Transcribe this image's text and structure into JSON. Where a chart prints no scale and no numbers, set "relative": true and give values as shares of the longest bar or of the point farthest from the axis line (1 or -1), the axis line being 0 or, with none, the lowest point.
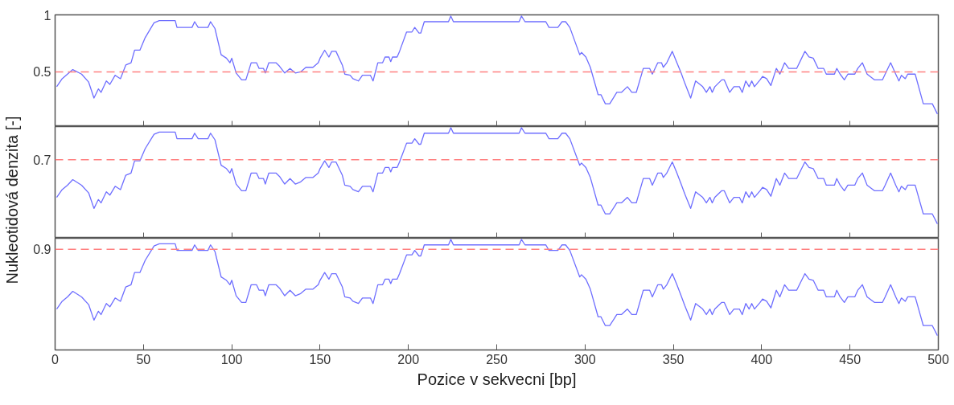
{
  "chart_data": [
    {
      "type": "line",
      "tick_labels": "y",
      "xlim": [
        0,
        500
      ],
      "xticks": [
        0,
        50,
        100,
        150,
        200,
        250,
        300,
        350,
        400,
        450,
        500
      ],
      "ylim": [
        0.02,
        1
      ],
      "yticks": [
        0.5,
        1
      ],
      "x": [
        0.9,
        4,
        7,
        10,
        15,
        19,
        22,
        24.5,
        26,
        29,
        31,
        34,
        37,
        40,
        43,
        45,
        48,
        51,
        56,
        59,
        68,
        69,
        77.5,
        79,
        81,
        86.5,
        88,
        90.5,
        94,
        97,
        99,
        100,
        102.5,
        105.6,
        108,
        111,
        114,
        115.5,
        118,
        119,
        121,
        125,
        127,
        130,
        133,
        136,
        139,
        142,
        146,
        149,
        150,
        152.6,
        155,
        156.6,
        159,
        162.6,
        164,
        167,
        168.6,
        171.7,
        174,
        178.5,
        180,
        182.7,
        185.4,
        186.8,
        189,
        190,
        191,
        193.6,
        195,
        199,
        202,
        203.6,
        206,
        207,
        209,
        222.7,
        224,
        225.5,
        262.7,
        264,
        266,
        277.8,
        279.6,
        284.6,
        287,
        289,
        291.4,
        297,
        298,
        300.5,
        303,
        307.4,
        309,
        311.5,
        314,
        318,
        320.6,
        324,
        326.5,
        329,
        333,
        336.6,
        338.1,
        341.2,
        343.3,
        344.3,
        346.3,
        349.4,
        352,
        354.4,
        356.5,
        359.8,
        362.6,
        366.6,
        368.7,
        370.7,
        372,
        373.5,
        377.4,
        378.8,
        381.9,
        384.3,
        387.4,
        389,
        391,
        392.9,
        394.4,
        395.9,
        399.1,
        400.5,
        402.8,
        405.2,
        408.3,
        410.3,
        413,
        415.3,
        419.8,
        424.5,
        426.8,
        429.2,
        432,
        435.1,
        436.6,
        441.2,
        442.5,
        444.4,
        446.8,
        448.8,
        452.7,
        454.4,
        457,
        459.7,
        463.8,
        468.4,
        469.9,
        473,
        475.9,
        477.7,
        479.1,
        481.3,
        482.7,
        486.9,
        491.5,
        496.6,
        499.5
      ],
      "values": [
        0.37,
        0.44,
        0.48,
        0.52,
        0.48,
        0.41,
        0.27,
        0.35,
        0.32,
        0.42,
        0.39,
        0.47,
        0.44,
        0.56,
        0.58,
        0.69,
        0.69,
        0.8,
        0.93,
        0.95,
        0.95,
        0.89,
        0.89,
        0.94,
        0.89,
        0.89,
        0.94,
        0.88,
        0.65,
        0.62,
        0.58,
        0.62,
        0.49,
        0.43,
        0.43,
        0.58,
        0.58,
        0.53,
        0.53,
        0.49,
        0.58,
        0.58,
        0.55,
        0.49,
        0.53,
        0.49,
        0.5,
        0.54,
        0.54,
        0.58,
        0.62,
        0.69,
        0.63,
        0.68,
        0.68,
        0.56,
        0.48,
        0.47,
        0.44,
        0.42,
        0.47,
        0.47,
        0.42,
        0.58,
        0.58,
        0.63,
        0.63,
        0.59,
        0.63,
        0.63,
        0.68,
        0.85,
        0.85,
        0.89,
        0.84,
        0.84,
        0.94,
        0.94,
        0.99,
        0.94,
        0.94,
        0.99,
        0.94,
        0.94,
        0.89,
        0.89,
        0.94,
        0.94,
        0.89,
        0.65,
        0.67,
        0.63,
        0.54,
        0.3,
        0.3,
        0.22,
        0.22,
        0.32,
        0.32,
        0.37,
        0.32,
        0.32,
        0.53,
        0.53,
        0.48,
        0.58,
        0.58,
        0.54,
        0.58,
        0.68,
        0.58,
        0.49,
        0.4,
        0.27,
        0.42,
        0.37,
        0.32,
        0.37,
        0.32,
        0.37,
        0.43,
        0.43,
        0.32,
        0.37,
        0.37,
        0.32,
        0.42,
        0.37,
        0.42,
        0.37,
        0.43,
        0.46,
        0.44,
        0.38,
        0.53,
        0.48,
        0.58,
        0.53,
        0.53,
        0.68,
        0.63,
        0.62,
        0.53,
        0.53,
        0.48,
        0.48,
        0.53,
        0.48,
        0.43,
        0.48,
        0.48,
        0.53,
        0.58,
        0.48,
        0.43,
        0.43,
        0.48,
        0.58,
        0.48,
        0.42,
        0.47,
        0.44,
        0.48,
        0.48,
        0.22,
        0.22,
        0.13
      ],
      "color": "#6e6eff",
      "line_style": "solid",
      "marker": "none",
      "ref_lines": [
        {
          "axis": "y",
          "value": 0.5,
          "color": "#ff8080",
          "line_style": "dashed"
        }
      ]
    },
    {
      "type": "line",
      "relative": true,
      "tick_labels": "y",
      "ylabel": "Nukleotidová denzita [-]",
      "xlim": [
        0,
        500
      ],
      "xticks": [
        0,
        50,
        100,
        150,
        200,
        250,
        300,
        350,
        400,
        450,
        500
      ],
      "x": [
        0.9,
        4,
        7,
        10,
        15,
        19,
        22,
        24.5,
        26,
        29,
        31,
        34,
        37,
        40,
        43,
        45,
        48,
        51,
        56,
        59,
        68,
        69,
        77.5,
        79,
        81,
        86.5,
        88,
        90.5,
        94,
        97,
        99,
        100,
        102.5,
        105.6,
        108,
        111,
        114,
        115.5,
        118,
        119,
        121,
        125,
        127,
        130,
        133,
        136,
        139,
        142,
        146,
        149,
        150,
        152.6,
        155,
        156.6,
        159,
        162.6,
        164,
        167,
        168.6,
        171.7,
        174,
        178.5,
        180,
        182.7,
        185.4,
        186.8,
        189,
        190,
        191,
        193.6,
        195,
        199,
        202,
        203.6,
        206,
        207,
        209,
        222.7,
        224,
        225.5,
        262.7,
        264,
        266,
        277.8,
        279.6,
        284.6,
        287,
        289,
        291.4,
        297,
        298,
        300.5,
        303,
        307.4,
        309,
        311.5,
        314,
        318,
        320.6,
        324,
        326.5,
        329,
        333,
        336.6,
        338.1,
        341.2,
        343.3,
        344.3,
        346.3,
        349.4,
        352,
        354.4,
        356.5,
        359.8,
        362.6,
        366.6,
        368.7,
        370.7,
        372,
        373.5,
        377.4,
        378.8,
        381.9,
        384.3,
        387.4,
        389,
        391,
        392.9,
        394.4,
        395.9,
        399.1,
        400.5,
        402.8,
        405.2,
        408.3,
        410.3,
        413,
        415.3,
        419.8,
        424.5,
        426.8,
        429.2,
        432,
        435.1,
        436.6,
        441.2,
        442.5,
        444.4,
        446.8,
        448.8,
        452.7,
        454.4,
        457,
        459.7,
        463.8,
        468.4,
        469.9,
        473,
        475.9,
        477.7,
        479.1,
        481.3,
        482.7,
        486.9,
        491.5,
        496.6,
        499.5
      ],
      "values": [
        0.37,
        0.44,
        0.48,
        0.53,
        0.48,
        0.41,
        0.27,
        0.35,
        0.32,
        0.42,
        0.39,
        0.47,
        0.44,
        0.57,
        0.59,
        0.7,
        0.7,
        0.81,
        0.94,
        0.96,
        0.96,
        0.9,
        0.9,
        0.95,
        0.9,
        0.9,
        0.95,
        0.89,
        0.66,
        0.63,
        0.59,
        0.63,
        0.49,
        0.43,
        0.43,
        0.59,
        0.59,
        0.54,
        0.54,
        0.49,
        0.59,
        0.59,
        0.56,
        0.49,
        0.54,
        0.49,
        0.51,
        0.55,
        0.55,
        0.59,
        0.63,
        0.7,
        0.64,
        0.69,
        0.69,
        0.57,
        0.48,
        0.47,
        0.44,
        0.42,
        0.47,
        0.47,
        0.42,
        0.59,
        0.59,
        0.64,
        0.64,
        0.6,
        0.64,
        0.64,
        0.69,
        0.86,
        0.86,
        0.9,
        0.85,
        0.85,
        0.95,
        0.95,
        1,
        0.95,
        0.95,
        1,
        0.95,
        0.95,
        0.9,
        0.9,
        0.95,
        0.95,
        0.9,
        0.66,
        0.68,
        0.64,
        0.55,
        0.3,
        0.3,
        0.22,
        0.22,
        0.32,
        0.32,
        0.37,
        0.32,
        0.32,
        0.54,
        0.54,
        0.48,
        0.59,
        0.59,
        0.55,
        0.59,
        0.69,
        0.59,
        0.49,
        0.4,
        0.27,
        0.42,
        0.37,
        0.32,
        0.37,
        0.32,
        0.37,
        0.43,
        0.43,
        0.32,
        0.37,
        0.37,
        0.32,
        0.42,
        0.37,
        0.42,
        0.37,
        0.43,
        0.46,
        0.44,
        0.38,
        0.54,
        0.48,
        0.59,
        0.54,
        0.54,
        0.69,
        0.64,
        0.63,
        0.54,
        0.54,
        0.48,
        0.48,
        0.54,
        0.48,
        0.43,
        0.48,
        0.48,
        0.54,
        0.59,
        0.48,
        0.43,
        0.43,
        0.48,
        0.59,
        0.48,
        0.42,
        0.47,
        0.44,
        0.48,
        0.48,
        0.22,
        0.22,
        0.13
      ],
      "color": "#6e6eff",
      "line_style": "solid",
      "marker": "none",
      "ref_lines": [
        {
          "axis": "y",
          "value": 0.71,
          "label": "0.7",
          "color": "#ff8080",
          "line_style": "dashed"
        }
      ]
    },
    {
      "type": "line",
      "relative": true,
      "xlabel": "Pozice v sekvecni [bp]",
      "xlim": [
        0,
        500
      ],
      "xticks": [
        0,
        50,
        100,
        150,
        200,
        250,
        300,
        350,
        400,
        450,
        500
      ],
      "x": [
        0.9,
        4,
        7,
        10,
        15,
        19,
        22,
        24.5,
        26,
        29,
        31,
        34,
        37,
        40,
        43,
        45,
        48,
        51,
        56,
        59,
        68,
        69,
        77.5,
        79,
        81,
        86.5,
        88,
        90.5,
        94,
        97,
        99,
        100,
        102.5,
        105.6,
        108,
        111,
        114,
        115.5,
        118,
        119,
        121,
        125,
        127,
        130,
        133,
        136,
        139,
        142,
        146,
        149,
        150,
        152.6,
        155,
        156.6,
        159,
        162.6,
        164,
        167,
        168.6,
        171.7,
        174,
        178.5,
        180,
        182.7,
        185.4,
        186.8,
        189,
        190,
        191,
        193.6,
        195,
        199,
        202,
        203.6,
        206,
        207,
        209,
        222.7,
        224,
        225.5,
        262.7,
        264,
        266,
        277.8,
        279.6,
        284.6,
        287,
        289,
        291.4,
        297,
        298,
        300.5,
        303,
        307.4,
        309,
        311.5,
        314,
        318,
        320.6,
        324,
        326.5,
        329,
        333,
        336.6,
        338.1,
        341.2,
        343.3,
        344.3,
        346.3,
        349.4,
        352,
        354.4,
        356.5,
        359.8,
        362.6,
        366.6,
        368.7,
        370.7,
        372,
        373.5,
        377.4,
        378.8,
        381.9,
        384.3,
        387.4,
        389,
        391,
        392.9,
        394.4,
        395.9,
        399.1,
        400.5,
        402.8,
        405.2,
        408.3,
        410.3,
        413,
        415.3,
        419.8,
        424.5,
        426.8,
        429.2,
        432,
        435.1,
        436.6,
        441.2,
        442.5,
        444.4,
        446.8,
        448.8,
        452.7,
        454.4,
        457,
        459.7,
        463.8,
        468.4,
        469.9,
        473,
        475.9,
        477.7,
        479.1,
        481.3,
        482.7,
        486.9,
        491.5,
        496.6,
        499.5
      ],
      "values": [
        0.37,
        0.44,
        0.48,
        0.53,
        0.48,
        0.41,
        0.27,
        0.35,
        0.32,
        0.42,
        0.39,
        0.47,
        0.44,
        0.57,
        0.59,
        0.7,
        0.7,
        0.81,
        0.94,
        0.96,
        0.96,
        0.9,
        0.9,
        0.95,
        0.9,
        0.9,
        0.95,
        0.89,
        0.66,
        0.63,
        0.59,
        0.63,
        0.49,
        0.43,
        0.43,
        0.59,
        0.59,
        0.54,
        0.54,
        0.49,
        0.59,
        0.59,
        0.56,
        0.49,
        0.54,
        0.49,
        0.51,
        0.55,
        0.55,
        0.59,
        0.63,
        0.7,
        0.64,
        0.69,
        0.69,
        0.57,
        0.48,
        0.47,
        0.44,
        0.42,
        0.47,
        0.47,
        0.42,
        0.59,
        0.59,
        0.64,
        0.64,
        0.6,
        0.64,
        0.64,
        0.69,
        0.86,
        0.86,
        0.9,
        0.85,
        0.85,
        0.95,
        0.95,
        1,
        0.95,
        0.95,
        1,
        0.95,
        0.95,
        0.9,
        0.9,
        0.95,
        0.95,
        0.9,
        0.66,
        0.68,
        0.64,
        0.55,
        0.3,
        0.3,
        0.22,
        0.22,
        0.32,
        0.32,
        0.37,
        0.32,
        0.32,
        0.54,
        0.54,
        0.48,
        0.59,
        0.59,
        0.55,
        0.59,
        0.69,
        0.59,
        0.49,
        0.4,
        0.27,
        0.42,
        0.37,
        0.32,
        0.37,
        0.32,
        0.37,
        0.43,
        0.43,
        0.32,
        0.37,
        0.37,
        0.32,
        0.42,
        0.37,
        0.42,
        0.37,
        0.43,
        0.46,
        0.44,
        0.38,
        0.54,
        0.48,
        0.59,
        0.54,
        0.54,
        0.69,
        0.64,
        0.63,
        0.54,
        0.54,
        0.48,
        0.48,
        0.54,
        0.48,
        0.43,
        0.48,
        0.48,
        0.54,
        0.59,
        0.48,
        0.43,
        0.43,
        0.48,
        0.59,
        0.48,
        0.42,
        0.47,
        0.44,
        0.48,
        0.48,
        0.22,
        0.22,
        0.13
      ],
      "color": "#6e6eff",
      "line_style": "solid",
      "marker": "none",
      "ref_lines": [
        {
          "axis": "y",
          "value": 0.91,
          "label": "0.9",
          "color": "#ff8080",
          "line_style": "dashed"
        }
      ]
    }
  ]
}
